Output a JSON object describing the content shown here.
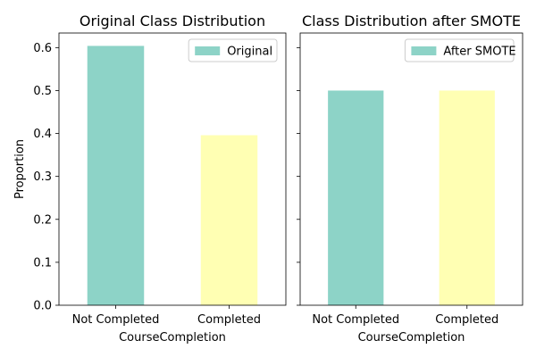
{
  "chart_data": [
    {
      "type": "bar",
      "title": "Original Class Distribution",
      "xlabel": "CourseCompletion",
      "ylabel": "Proportion",
      "categories": [
        "Not Completed",
        "Completed"
      ],
      "series": [
        {
          "name": "Original",
          "values": [
            0.604,
            0.396
          ]
        }
      ],
      "bar_colors": [
        "#8dd3c7",
        "#ffffb3"
      ],
      "ylim": [
        0,
        0.634
      ],
      "yticks": [
        0.0,
        0.1,
        0.2,
        0.3,
        0.4,
        0.5,
        0.6
      ],
      "ytick_labels": [
        "0.0",
        "0.1",
        "0.2",
        "0.3",
        "0.4",
        "0.5",
        "0.6"
      ],
      "legend": {
        "placement": "top-right",
        "entries": [
          "Original"
        ]
      },
      "grid": false
    },
    {
      "type": "bar",
      "title": "Class Distribution after SMOTE",
      "xlabel": "CourseCompletion",
      "ylabel": "",
      "categories": [
        "Not Completed",
        "Completed"
      ],
      "series": [
        {
          "name": "After SMOTE",
          "values": [
            0.5,
            0.5
          ]
        }
      ],
      "bar_colors": [
        "#8dd3c7",
        "#ffffb3"
      ],
      "ylim": [
        0,
        0.634
      ],
      "yticks": [
        0.0,
        0.1,
        0.2,
        0.3,
        0.4,
        0.5,
        0.6
      ],
      "ytick_labels": [],
      "legend": {
        "placement": "top-right",
        "entries": [
          "After SMOTE"
        ]
      },
      "grid": false,
      "sharey": true
    }
  ]
}
